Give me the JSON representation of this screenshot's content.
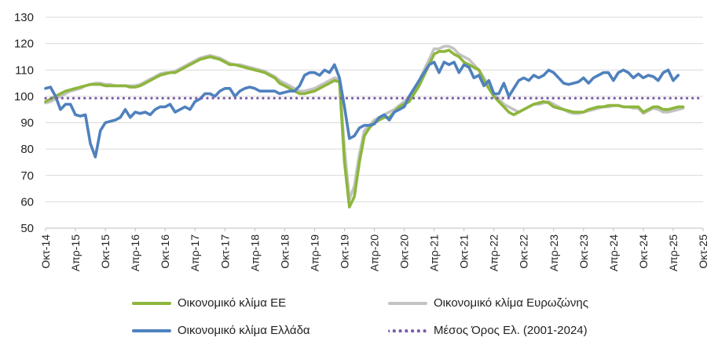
{
  "chart_data": {
    "type": "line",
    "title": "",
    "xlabel": "",
    "ylabel": "",
    "ylim": [
      50,
      130
    ],
    "yticks": [
      50,
      60,
      70,
      80,
      90,
      100,
      110,
      120,
      130
    ],
    "grid": "horizontal",
    "legend_position": "bottom",
    "x_start": "2014-10",
    "x_tick_labels": [
      "Οκτ-14",
      "Απρ-15",
      "Οκτ-15",
      "Απρ-16",
      "Οκτ-16",
      "Απρ-17",
      "Οκτ-17",
      "Απρ-18",
      "Οκτ-18",
      "Απρ-19",
      "Οκτ-19",
      "Απρ-20",
      "Οκτ-20",
      "Απρ-21",
      "Οκτ-21",
      "Απρ-22",
      "Οκτ-22",
      "Απρ-23",
      "Οκτ-23",
      "Απρ-24",
      "Οκτ-24",
      "Απρ-25",
      "Οκτ-25"
    ],
    "series": [
      {
        "name": "Οικονομικό κλίμα ΕΕ",
        "color": "#8db63c",
        "values": [
          98,
          99,
          100,
          101,
          102,
          102.5,
          103,
          103.5,
          104,
          104.5,
          104.5,
          104.5,
          104,
          104,
          104,
          104,
          104,
          103.5,
          103.5,
          104,
          105,
          106,
          107,
          108,
          108.5,
          109,
          109,
          110,
          111,
          112,
          113,
          114,
          114.5,
          115,
          114.5,
          114,
          113,
          112,
          112,
          111.5,
          111,
          110.5,
          110,
          109.5,
          109,
          108,
          107,
          105,
          104,
          103,
          102,
          101,
          101,
          101.5,
          102,
          103,
          104,
          105,
          106,
          105.5,
          75,
          58,
          62,
          75,
          85,
          88,
          90,
          91,
          92,
          92,
          94,
          96,
          97,
          98,
          101,
          104,
          108,
          112,
          116,
          117,
          117,
          117.5,
          116,
          115,
          113,
          112,
          111,
          110,
          106,
          103,
          100,
          98,
          96,
          94,
          93,
          94,
          95,
          96,
          97,
          97.5,
          98,
          97.5,
          96,
          95.5,
          95,
          94.5,
          94,
          94,
          94,
          95,
          95.5,
          96,
          96,
          96.5,
          96.5,
          96.5,
          96,
          96,
          96,
          96,
          94,
          95,
          96,
          96,
          95,
          95,
          95.5,
          96,
          96
        ]
      },
      {
        "name": "Οικονομικό κλίμα Ευρωζώνης",
        "color": "#c3c3c3",
        "values": [
          97.5,
          98,
          99,
          100,
          101,
          102,
          102.5,
          103,
          104,
          104.5,
          105,
          105,
          104.5,
          104.5,
          104,
          104,
          104,
          104,
          104,
          104.5,
          105.5,
          106.5,
          107.5,
          108.5,
          109,
          109,
          109.5,
          110.5,
          111.5,
          112.5,
          113.5,
          114.5,
          115,
          115.5,
          115,
          114.5,
          113.5,
          112.5,
          112,
          112,
          111.5,
          111,
          110.5,
          110,
          109.5,
          108.5,
          107.5,
          106,
          105,
          104,
          103,
          102,
          102,
          102.5,
          103,
          104,
          105,
          106,
          107,
          106.5,
          80,
          61,
          66,
          78,
          87,
          89,
          91,
          92,
          93,
          94,
          95,
          96.5,
          98,
          100,
          102.5,
          106,
          110,
          114,
          118,
          118,
          119,
          119,
          118,
          116,
          115,
          114,
          112,
          110,
          107,
          104,
          101,
          99,
          97,
          96,
          95,
          94,
          95,
          96,
          97,
          97,
          97.5,
          98,
          97,
          96,
          95,
          94,
          93.5,
          93.5,
          94,
          94.5,
          95,
          95.5,
          96,
          96,
          96.5,
          96.5,
          96,
          96,
          95.5,
          95.5,
          93.5,
          94.5,
          95.5,
          95,
          94,
          94,
          94.5,
          95,
          95.5
        ]
      },
      {
        "name": "Οικονομικό κλίμα Ελλάδα",
        "color": "#4f81bd",
        "values": [
          103,
          103.5,
          100,
          95,
          97,
          97,
          93,
          92.5,
          93,
          82,
          77,
          87,
          90,
          90.5,
          91,
          92,
          95,
          92,
          94,
          93.5,
          94,
          93,
          95,
          96,
          96,
          97,
          94,
          95,
          96,
          95,
          98,
          99,
          101,
          101,
          100,
          102,
          103,
          103,
          100,
          102,
          103,
          103.5,
          103,
          102,
          102,
          102,
          102,
          101,
          101.5,
          102,
          102,
          104,
          108,
          109,
          109,
          108,
          110,
          109,
          112,
          107,
          96,
          84,
          85,
          88,
          89,
          89,
          89.5,
          92,
          93,
          91,
          94,
          95,
          96,
          100,
          103,
          106,
          109,
          112,
          113,
          109,
          113,
          112,
          113,
          109,
          112,
          111,
          107,
          108,
          104,
          106,
          101,
          101,
          105,
          100,
          103,
          106,
          107,
          106,
          108,
          107,
          108,
          110,
          109,
          107,
          105,
          104.5,
          105,
          105.5,
          107,
          105,
          107,
          108,
          109,
          109,
          106,
          109,
          110,
          109,
          107,
          108.5,
          107,
          108,
          107.5,
          106,
          109,
          110,
          106,
          108
        ]
      },
      {
        "name": "Μέσος Όρος Ελ. (2001-2024)",
        "color": "#7b5ea7",
        "style": "dotted",
        "values": [
          99.3
        ]
      }
    ]
  }
}
